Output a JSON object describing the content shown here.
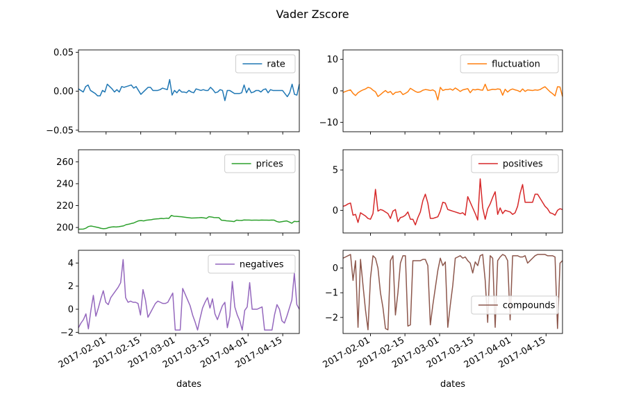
{
  "figure": {
    "title": "Vader Zscore"
  },
  "chart_data": [
    {
      "type": "line",
      "series": [
        {
          "name": "rate",
          "color": "#1f77b4",
          "y": [
            0.003,
            0.001,
            -0.001,
            0.006,
            0.008,
            0.001,
            -0.001,
            -0.003,
            -0.006,
            -0.006,
            0.001,
            -0.001,
            0.009,
            0.006,
            0.003,
            -0.001,
            0.002,
            -0.001,
            0.006,
            0.005,
            0.006,
            0.007,
            0.008,
            0.004,
            0.006,
            0.001,
            -0.004,
            -0.001,
            0.002,
            0.005,
            0.005,
            0.001,
            0.001,
            0.001,
            0.002,
            0.004,
            0.003,
            0.002,
            0.015,
            -0.005,
            0.001,
            -0.002,
            0.002,
            -0.001,
            -0.001,
            -0.002,
            0.001,
            -0.001,
            -0.002,
            0.003,
            0.002,
            0.001,
            0.002,
            0.001,
            0.001,
            0.005,
            0.002,
            -0.002,
            -0.001,
            0.002,
            0.001,
            -0.012,
            0.001,
            0.001,
            -0.001,
            -0.003,
            -0.003,
            -0.003,
            -0.002,
            0.008,
            -0.002,
            0.004,
            -0.002,
            -0.001,
            0.001,
            0.001,
            -0.001,
            0.002,
            0.003,
            -0.002,
            0.002,
            0.001,
            0.001,
            0.001,
            0.001,
            0.001,
            -0.003,
            -0.007,
            -0.002,
            0.009,
            -0.004,
            -0.005,
            0.009
          ]
        }
      ],
      "yticks": [
        "−0.05",
        "0.00",
        "0.05"
      ],
      "ylim": [
        -0.052,
        0.053
      ],
      "legend": "upper right"
    },
    {
      "type": "line",
      "series": [
        {
          "name": "fluctuation",
          "color": "#ff7f0e",
          "y": [
            -0.5,
            -0.2,
            0.1,
            0.3,
            -0.8,
            -1.5,
            -0.6,
            -0.1,
            0.3,
            0.6,
            1.1,
            0.9,
            0.2,
            -0.3,
            -1.8,
            -1.2,
            -0.5,
            0.1,
            -0.6,
            -0.2,
            -1.2,
            -0.5,
            -0.4,
            -0.2,
            -1.2,
            -0.8,
            -0.3,
            0.8,
            0.3,
            -0.2,
            -0.5,
            -0.3,
            0.2,
            0.4,
            0.3,
            0.1,
            0.3,
            -0.2,
            -2.9,
            1.1,
            0.1,
            0.4,
            0.4,
            0.6,
            0.2,
            0.9,
            0.4,
            -0.2,
            0.3,
            0.5,
            0.7,
            -0.6,
            0.4,
            0.3,
            0.5,
            0.3,
            0.2,
            2.1,
            0.1,
            0.3,
            0.5,
            0.4,
            0.6,
            0.5,
            -1.4,
            0.5,
            -0.4,
            0.3,
            0.6,
            0.3,
            0.1,
            -0.3,
            0.6,
            -0.2,
            0.3,
            0.2,
            0.1,
            0.3,
            0.2,
            0.4,
            0.9,
            1.3,
            0.5,
            -0.3,
            -0.9,
            -1.6,
            1.3,
            1.2,
            -1.8
          ]
        }
      ],
      "yticks": [
        "−10",
        "0",
        "10"
      ],
      "ylim": [
        -13,
        13
      ],
      "legend": "upper right"
    },
    {
      "type": "line",
      "series": [
        {
          "name": "prices",
          "color": "#2ca02c",
          "y": [
            198.5,
            198.5,
            198.6,
            199.4,
            200.9,
            201.3,
            200.9,
            200.4,
            199.9,
            199.2,
            198.9,
            199.1,
            199.9,
            200.4,
            200.6,
            200.5,
            200.7,
            201.1,
            201.5,
            202.6,
            203.0,
            203.6,
            204.1,
            205.2,
            206.1,
            206.3,
            206.0,
            206.6,
            206.9,
            207.1,
            207.6,
            207.8,
            208.0,
            208.3,
            208.1,
            208.5,
            208.3,
            211.0,
            210.3,
            210.2,
            210.0,
            209.8,
            209.5,
            209.2,
            208.9,
            208.6,
            208.7,
            208.8,
            208.9,
            209.1,
            208.8,
            208.4,
            209.9,
            209.6,
            209.1,
            209.0,
            208.9,
            206.6,
            206.5,
            206.1,
            205.9,
            205.7,
            205.4,
            206.7,
            206.5,
            206.4,
            206.9,
            206.8,
            206.8,
            206.6,
            206.7,
            206.7,
            206.6,
            206.8,
            206.7,
            206.7,
            206.6,
            206.8,
            206.7,
            205.5,
            204.9,
            205.3,
            205.7,
            206.0,
            205.0,
            203.9,
            205.6,
            205.4,
            205.6
          ]
        }
      ],
      "yticks": [
        "200",
        "220",
        "240",
        "260"
      ],
      "ylim": [
        195,
        271
      ],
      "legend": "upper right"
    },
    {
      "type": "line",
      "series": [
        {
          "name": "positives",
          "color": "#d62728",
          "y": [
            0.5,
            0.6,
            0.8,
            0.9,
            -0.6,
            -0.5,
            -1.5,
            -0.3,
            -0.5,
            -0.7,
            -1.0,
            -1.1,
            -0.4,
            2.6,
            -0.1,
            0.1,
            0.0,
            -0.2,
            -0.4,
            -1.0,
            -0.1,
            0.1,
            -1.4,
            -0.9,
            -0.8,
            -0.6,
            -0.2,
            -1.1,
            -1.1,
            -1.8,
            -0.9,
            -0.2,
            1.2,
            2.0,
            0.9,
            -1.0,
            -1.0,
            -0.9,
            -0.8,
            -0.1,
            1.0,
            0.9,
            0.1,
            0.0,
            -0.1,
            -0.2,
            -0.3,
            -0.4,
            -0.3,
            -0.6,
            1.7,
            1.0,
            0.3,
            -0.4,
            -1.2,
            3.9,
            0.3,
            -1.1,
            0.2,
            0.8,
            1.6,
            2.3,
            -0.5,
            0.3,
            -0.4,
            0.0,
            -0.1,
            -0.2,
            -0.5,
            -0.3,
            0.5,
            2.1,
            3.2,
            1.0,
            1.0,
            1.0,
            1.0,
            2.0,
            2.0,
            1.5,
            1.0,
            0.5,
            0.2,
            -0.3,
            -0.4,
            -0.6,
            0.0,
            0.2,
            0.1
          ]
        }
      ],
      "yticks": [
        "0",
        "5"
      ],
      "ylim": [
        -2.8,
        7.5
      ],
      "legend": "upper right"
    },
    {
      "type": "line",
      "series": [
        {
          "name": "negatives",
          "color": "#9467bd",
          "y": [
            -1.6,
            -1.2,
            -0.9,
            -0.4,
            -1.7,
            -0.1,
            1.2,
            -0.6,
            0.1,
            0.9,
            1.6,
            0.6,
            0.4,
            1.0,
            1.3,
            1.6,
            1.9,
            2.3,
            4.3,
            1.0,
            0.6,
            0.7,
            0.6,
            0.6,
            0.5,
            -0.5,
            1.7,
            0.8,
            -0.7,
            -0.3,
            0.1,
            0.5,
            0.7,
            0.6,
            0.5,
            0.5,
            0.6,
            1.0,
            1.4,
            -1.8,
            -1.8,
            -1.8,
            1.8,
            1.3,
            0.8,
            0.3,
            -0.5,
            -1.1,
            -1.8,
            -0.8,
            0.1,
            0.6,
            1.0,
            0.1,
            0.9,
            -0.4,
            -0.9,
            -0.3,
            0.3,
            0.6,
            -1.6,
            -0.6,
            2.4,
            0.2,
            -0.5,
            -1.0,
            -1.8,
            -0.1,
            0.2,
            2.3,
            0.0,
            0.0,
            0.0,
            0.1,
            0.2,
            -1.8,
            -1.8,
            -1.8,
            -1.8,
            -0.5,
            0.4,
            0.0,
            -1.0,
            -1.2,
            -0.6,
            0.1,
            0.8,
            3.1,
            0.4,
            0.0
          ]
        }
      ],
      "yticks": [
        "−2",
        "0",
        "2",
        "4"
      ],
      "ylim": [
        -2.1,
        5.1
      ],
      "legend": "upper right",
      "xticks": [
        "2017-02-01",
        "2017-02-15",
        "2017-03-01",
        "2017-03-15",
        "2017-04-01",
        "2017-04-15"
      ],
      "xlabel": "dates"
    },
    {
      "type": "line",
      "series": [
        {
          "name": "compounds",
          "color": "#8c564b",
          "y": [
            0.4,
            0.45,
            0.5,
            0.55,
            -0.5,
            0.3,
            -2.4,
            0.35,
            -0.7,
            -1.7,
            -2.5,
            -0.4,
            0.5,
            0.4,
            0.0,
            -1.0,
            -1.6,
            -2.45,
            -2.5,
            0.3,
            0.5,
            -1.9,
            -1.0,
            0.2,
            0.5,
            0.5,
            -2.35,
            -2.3,
            0.3,
            0.3,
            0.3,
            0.3,
            0.35,
            0.35,
            0.1,
            -2.3,
            -1.5,
            -0.8,
            -0.1,
            0.4,
            0.1,
            0.25,
            -2.4,
            -1.5,
            -0.7,
            0.4,
            0.45,
            0.5,
            0.4,
            0.45,
            0.3,
            0.2,
            -0.2,
            0.25,
            0.1,
            0.5,
            0.55,
            -0.5,
            -2.2,
            0.5,
            0.4,
            -2.4,
            0.3,
            0.45,
            0.55,
            0.5,
            0.3,
            -2.1,
            0.5,
            0.5,
            0.5,
            0.45,
            0.45,
            0.5,
            0.2,
            0.3,
            0.4,
            0.5,
            0.55,
            0.55,
            0.55,
            0.55,
            0.5,
            0.5,
            0.5,
            0.45,
            -2.45,
            0.2,
            0.3
          ]
        }
      ],
      "yticks": [
        "−2",
        "−1",
        "0"
      ],
      "ylim": [
        -2.65,
        0.72
      ],
      "legend": "center right",
      "xticks": [
        "2017-02-01",
        "2017-02-15",
        "2017-03-01",
        "2017-03-15",
        "2017-04-01",
        "2017-04-15"
      ],
      "xlabel": "dates"
    }
  ]
}
